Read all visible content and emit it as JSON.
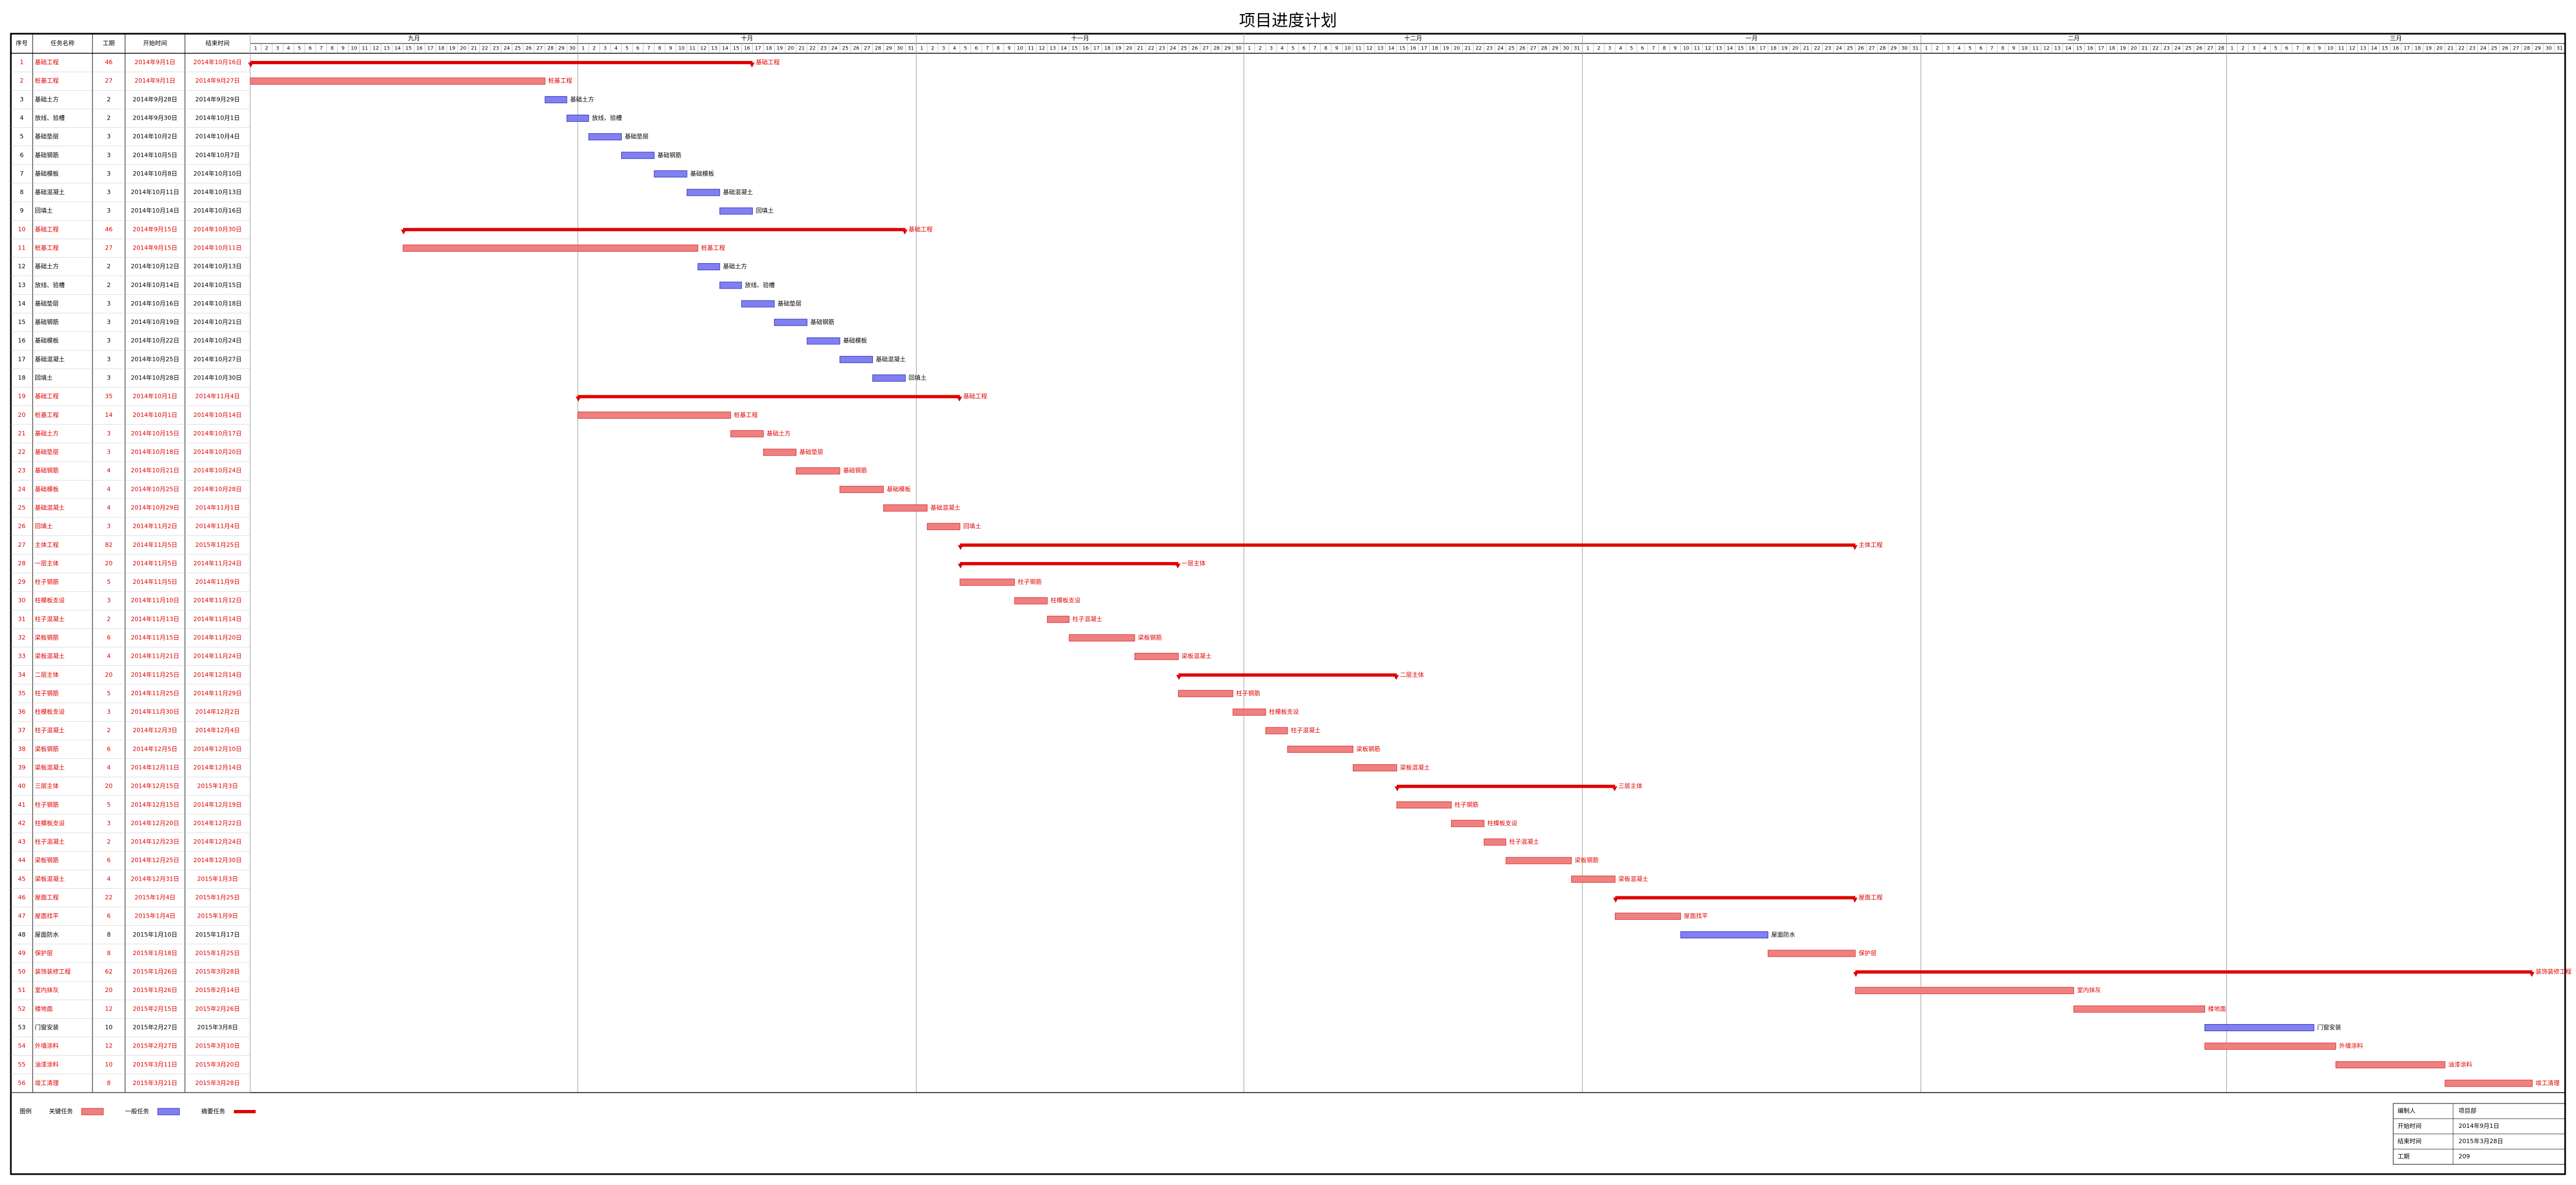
{
  "chart_data": {
    "type": "gantt",
    "title": "项目进度计划",
    "columns": [
      "序号",
      "任务名称",
      "工期",
      "开始时间",
      "结束时间"
    ],
    "months": [
      {
        "name": "九月",
        "days": [
          1,
          2,
          3,
          4,
          5,
          6,
          7,
          8,
          9,
          10,
          11,
          12,
          13,
          14,
          15,
          16,
          17,
          18,
          19,
          20,
          21,
          22,
          23,
          24,
          25,
          26,
          27,
          28,
          29,
          30
        ]
      },
      {
        "name": "十月",
        "days": [
          1,
          2,
          3,
          4,
          5,
          6,
          7,
          8,
          9,
          10,
          11,
          12,
          13,
          14,
          15,
          16,
          17,
          18,
          19,
          20,
          21,
          22,
          23,
          24,
          25,
          26,
          27,
          28,
          29,
          30,
          31
        ]
      },
      {
        "name": "十一月",
        "days": [
          1,
          2,
          3,
          4,
          5,
          6,
          7,
          8,
          9,
          10,
          11,
          12,
          13,
          14,
          15,
          16,
          17,
          18,
          19,
          20,
          21,
          22,
          23,
          24,
          25,
          26,
          27,
          28,
          29,
          30
        ]
      },
      {
        "name": "十二月",
        "days": [
          1,
          2,
          3,
          4,
          5,
          6,
          7,
          8,
          9,
          10,
          11,
          12,
          13,
          14,
          15,
          16,
          17,
          18,
          19,
          20,
          21,
          22,
          23,
          24,
          25,
          26,
          27,
          28,
          29,
          30,
          31
        ]
      },
      {
        "name": "一月",
        "days": [
          1,
          2,
          3,
          4,
          5,
          6,
          7,
          8,
          9,
          10,
          11,
          12,
          13,
          14,
          15,
          16,
          17,
          18,
          19,
          20,
          21,
          22,
          23,
          24,
          25,
          26,
          27,
          28,
          29,
          30,
          31
        ]
      },
      {
        "name": "二月",
        "days": [
          1,
          2,
          3,
          4,
          5,
          6,
          7,
          8,
          9,
          10,
          11,
          12,
          13,
          14,
          15,
          16,
          17,
          18,
          19,
          20,
          21,
          22,
          23,
          24,
          25,
          26,
          27,
          28
        ]
      },
      {
        "name": "三月",
        "days": [
          1,
          2,
          3,
          4,
          5,
          6,
          7,
          8,
          9,
          10,
          11,
          12,
          13,
          14,
          15,
          16,
          17,
          18,
          19,
          20,
          21,
          22,
          23,
          24,
          25,
          26,
          27,
          28,
          29,
          30,
          31
        ]
      }
    ],
    "tasks": [
      {
        "id": 1,
        "name": "基础工程",
        "duration": 46,
        "start": "2014年9月1日",
        "end": "2014年10月16日",
        "kind": "summary"
      },
      {
        "id": 2,
        "name": "桩基工程",
        "duration": 27,
        "start": "2014年9月1日",
        "end": "2014年9月27日",
        "kind": "critical"
      },
      {
        "id": 3,
        "name": "基础土方",
        "duration": 2,
        "start": "2014年9月28日",
        "end": "2014年9月29日",
        "kind": "normal"
      },
      {
        "id": 4,
        "name": "放线、验槽",
        "duration": 2,
        "start": "2014年9月30日",
        "end": "2014年10月1日",
        "kind": "normal"
      },
      {
        "id": 5,
        "name": "基础垫层",
        "duration": 3,
        "start": "2014年10月2日",
        "end": "2014年10月4日",
        "kind": "normal"
      },
      {
        "id": 6,
        "name": "基础钢筋",
        "duration": 3,
        "start": "2014年10月5日",
        "end": "2014年10月7日",
        "kind": "normal"
      },
      {
        "id": 7,
        "name": "基础模板",
        "duration": 3,
        "start": "2014年10月8日",
        "end": "2014年10月10日",
        "kind": "normal"
      },
      {
        "id": 8,
        "name": "基础混凝土",
        "duration": 3,
        "start": "2014年10月11日",
        "end": "2014年10月13日",
        "kind": "normal"
      },
      {
        "id": 9,
        "name": "回填土",
        "duration": 3,
        "start": "2014年10月14日",
        "end": "2014年10月16日",
        "kind": "normal"
      },
      {
        "id": 10,
        "name": "基础工程",
        "duration": 46,
        "start": "2014年9月15日",
        "end": "2014年10月30日",
        "kind": "summary"
      },
      {
        "id": 11,
        "name": "桩基工程",
        "duration": 27,
        "start": "2014年9月15日",
        "end": "2014年10月11日",
        "kind": "critical"
      },
      {
        "id": 12,
        "name": "基础土方",
        "duration": 2,
        "start": "2014年10月12日",
        "end": "2014年10月13日",
        "kind": "normal"
      },
      {
        "id": 13,
        "name": "放线、验槽",
        "duration": 2,
        "start": "2014年10月14日",
        "end": "2014年10月15日",
        "kind": "normal"
      },
      {
        "id": 14,
        "name": "基础垫层",
        "duration": 3,
        "start": "2014年10月16日",
        "end": "2014年10月18日",
        "kind": "normal"
      },
      {
        "id": 15,
        "name": "基础钢筋",
        "duration": 3,
        "start": "2014年10月19日",
        "end": "2014年10月21日",
        "kind": "normal"
      },
      {
        "id": 16,
        "name": "基础模板",
        "duration": 3,
        "start": "2014年10月22日",
        "end": "2014年10月24日",
        "kind": "normal"
      },
      {
        "id": 17,
        "name": "基础混凝土",
        "duration": 3,
        "start": "2014年10月25日",
        "end": "2014年10月27日",
        "kind": "normal"
      },
      {
        "id": 18,
        "name": "回填土",
        "duration": 3,
        "start": "2014年10月28日",
        "end": "2014年10月30日",
        "kind": "normal"
      },
      {
        "id": 19,
        "name": "基础工程",
        "duration": 35,
        "start": "2014年10月1日",
        "end": "2014年11月4日",
        "kind": "summary"
      },
      {
        "id": 20,
        "name": "桩基工程",
        "duration": 14,
        "start": "2014年10月1日",
        "end": "2014年10月14日",
        "kind": "critical"
      },
      {
        "id": 21,
        "name": "基础土方",
        "duration": 3,
        "start": "2014年10月15日",
        "end": "2014年10月17日",
        "kind": "critical"
      },
      {
        "id": 22,
        "name": "基础垫层",
        "duration": 3,
        "start": "2014年10月18日",
        "end": "2014年10月20日",
        "kind": "critical"
      },
      {
        "id": 23,
        "name": "基础钢筋",
        "duration": 4,
        "start": "2014年10月21日",
        "end": "2014年10月24日",
        "kind": "critical"
      },
      {
        "id": 24,
        "name": "基础模板",
        "duration": 4,
        "start": "2014年10月25日",
        "end": "2014年10月28日",
        "kind": "critical"
      },
      {
        "id": 25,
        "name": "基础混凝土",
        "duration": 4,
        "start": "2014年10月29日",
        "end": "2014年11月1日",
        "kind": "critical"
      },
      {
        "id": 26,
        "name": "回填土",
        "duration": 3,
        "start": "2014年11月2日",
        "end": "2014年11月4日",
        "kind": "critical"
      },
      {
        "id": 27,
        "name": "主体工程",
        "duration": 82,
        "start": "2014年11月5日",
        "end": "2015年1月25日",
        "kind": "summary"
      },
      {
        "id": 28,
        "name": "一层主体",
        "duration": 20,
        "start": "2014年11月5日",
        "end": "2014年11月24日",
        "kind": "summary"
      },
      {
        "id": 29,
        "name": "柱子钢筋",
        "duration": 5,
        "start": "2014年11月5日",
        "end": "2014年11月9日",
        "kind": "critical"
      },
      {
        "id": 30,
        "name": "柱模板支设",
        "duration": 3,
        "start": "2014年11月10日",
        "end": "2014年11月12日",
        "kind": "critical"
      },
      {
        "id": 31,
        "name": "柱子混凝土",
        "duration": 2,
        "start": "2014年11月13日",
        "end": "2014年11月14日",
        "kind": "critical"
      },
      {
        "id": 32,
        "name": "梁板钢筋",
        "duration": 6,
        "start": "2014年11月15日",
        "end": "2014年11月20日",
        "kind": "critical"
      },
      {
        "id": 33,
        "name": "梁板混凝土",
        "duration": 4,
        "start": "2014年11月21日",
        "end": "2014年11月24日",
        "kind": "critical"
      },
      {
        "id": 34,
        "name": "二层主体",
        "duration": 20,
        "start": "2014年11月25日",
        "end": "2014年12月14日",
        "kind": "summary"
      },
      {
        "id": 35,
        "name": "柱子钢筋",
        "duration": 5,
        "start": "2014年11月25日",
        "end": "2014年11月29日",
        "kind": "critical"
      },
      {
        "id": 36,
        "name": "柱模板支设",
        "duration": 3,
        "start": "2014年11月30日",
        "end": "2014年12月2日",
        "kind": "critical"
      },
      {
        "id": 37,
        "name": "柱子混凝土",
        "duration": 2,
        "start": "2014年12月3日",
        "end": "2014年12月4日",
        "kind": "critical"
      },
      {
        "id": 38,
        "name": "梁板钢筋",
        "duration": 6,
        "start": "2014年12月5日",
        "end": "2014年12月10日",
        "kind": "critical"
      },
      {
        "id": 39,
        "name": "梁板混凝土",
        "duration": 4,
        "start": "2014年12月11日",
        "end": "2014年12月14日",
        "kind": "critical"
      },
      {
        "id": 40,
        "name": "三层主体",
        "duration": 20,
        "start": "2014年12月15日",
        "end": "2015年1月3日",
        "kind": "summary"
      },
      {
        "id": 41,
        "name": "柱子钢筋",
        "duration": 5,
        "start": "2014年12月15日",
        "end": "2014年12月19日",
        "kind": "critical"
      },
      {
        "id": 42,
        "name": "柱模板支设",
        "duration": 3,
        "start": "2014年12月20日",
        "end": "2014年12月22日",
        "kind": "critical"
      },
      {
        "id": 43,
        "name": "柱子混凝土",
        "duration": 2,
        "start": "2014年12月23日",
        "end": "2014年12月24日",
        "kind": "critical"
      },
      {
        "id": 44,
        "name": "梁板钢筋",
        "duration": 6,
        "start": "2014年12月25日",
        "end": "2014年12月30日",
        "kind": "critical"
      },
      {
        "id": 45,
        "name": "梁板混凝土",
        "duration": 4,
        "start": "2014年12月31日",
        "end": "2015年1月3日",
        "kind": "critical"
      },
      {
        "id": 46,
        "name": "屋面工程",
        "duration": 22,
        "start": "2015年1月4日",
        "end": "2015年1月25日",
        "kind": "summary"
      },
      {
        "id": 47,
        "name": "屋面找平",
        "duration": 6,
        "start": "2015年1月4日",
        "end": "2015年1月9日",
        "kind": "critical"
      },
      {
        "id": 48,
        "name": "屋面防水",
        "duration": 8,
        "start": "2015年1月10日",
        "end": "2015年1月17日",
        "kind": "normal"
      },
      {
        "id": 49,
        "name": "保护层",
        "duration": 8,
        "start": "2015年1月18日",
        "end": "2015年1月25日",
        "kind": "critical"
      },
      {
        "id": 50,
        "name": "装饰装修工程",
        "duration": 62,
        "start": "2015年1月26日",
        "end": "2015年3月28日",
        "kind": "summary"
      },
      {
        "id": 51,
        "name": "室内抹灰",
        "duration": 20,
        "start": "2015年1月26日",
        "end": "2015年2月14日",
        "kind": "critical"
      },
      {
        "id": 52,
        "name": "楼地面",
        "duration": 12,
        "start": "2015年2月15日",
        "end": "2015年2月26日",
        "kind": "critical"
      },
      {
        "id": 53,
        "name": "门窗安装",
        "duration": 10,
        "start": "2015年2月27日",
        "end": "2015年3月8日",
        "kind": "normal"
      },
      {
        "id": 54,
        "name": "外墙涂料",
        "duration": 12,
        "start": "2015年2月27日",
        "end": "2015年3月10日",
        "kind": "critical"
      },
      {
        "id": 55,
        "name": "油漆涂料",
        "duration": 10,
        "start": "2015年3月11日",
        "end": "2015年3月20日",
        "kind": "critical"
      },
      {
        "id": 56,
        "name": "竣工清理",
        "duration": 8,
        "start": "2015年3月21日",
        "end": "2015年3月28日",
        "kind": "critical"
      }
    ],
    "colors": {
      "critical": "#f08080",
      "critical_edge": "#d83030",
      "normal": "#8080f0",
      "normal_edge": "#3030c0",
      "summary": "#e00000"
    },
    "legend": {
      "title": "图例",
      "items": [
        {
          "kind": "critical",
          "label": "关键任务"
        },
        {
          "kind": "normal",
          "label": "一般任务"
        },
        {
          "kind": "summary",
          "label": "摘要任务"
        }
      ]
    },
    "info": [
      {
        "key": "编制人",
        "value": "项目部"
      },
      {
        "key": "开始时间",
        "value": "2014年9月1日"
      },
      {
        "key": "结束时间",
        "value": "2015年3月28日"
      },
      {
        "key": "工期",
        "value": "209"
      }
    ]
  }
}
